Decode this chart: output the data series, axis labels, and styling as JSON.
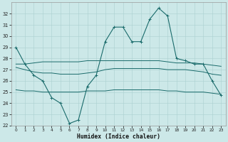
{
  "xlabel": "Humidex (Indice chaleur)",
  "bg_color": "#cce8e8",
  "grid_color": "#aad0d0",
  "line_color": "#1a6b6b",
  "x": [
    0,
    1,
    2,
    3,
    4,
    5,
    6,
    7,
    8,
    9,
    10,
    11,
    12,
    13,
    14,
    15,
    16,
    17,
    18,
    19,
    20,
    21,
    22,
    23
  ],
  "line_main": [
    29.0,
    27.5,
    26.5,
    26.0,
    24.5,
    24.0,
    22.2,
    22.5,
    25.5,
    26.5,
    29.5,
    30.8,
    30.8,
    29.5,
    29.5,
    31.5,
    32.5,
    31.8,
    28.0,
    27.8,
    27.5,
    27.5,
    26.0,
    24.7
  ],
  "line_upper": [
    27.5,
    27.5,
    27.6,
    27.7,
    27.7,
    27.7,
    27.7,
    27.7,
    27.8,
    27.8,
    27.8,
    27.8,
    27.8,
    27.8,
    27.8,
    27.8,
    27.8,
    27.7,
    27.6,
    27.6,
    27.6,
    27.5,
    27.4,
    27.3
  ],
  "line_mid": [
    27.2,
    27.0,
    26.8,
    26.7,
    26.7,
    26.6,
    26.6,
    26.6,
    26.7,
    26.8,
    27.0,
    27.1,
    27.1,
    27.1,
    27.1,
    27.1,
    27.1,
    27.0,
    27.0,
    27.0,
    26.9,
    26.8,
    26.6,
    26.5
  ],
  "line_lower": [
    25.2,
    25.1,
    25.1,
    25.0,
    25.0,
    25.0,
    25.0,
    25.0,
    25.1,
    25.1,
    25.1,
    25.2,
    25.2,
    25.2,
    25.2,
    25.2,
    25.2,
    25.1,
    25.1,
    25.0,
    25.0,
    25.0,
    24.9,
    24.8
  ],
  "ylim": [
    22,
    33
  ],
  "yticks": [
    22,
    23,
    24,
    25,
    26,
    27,
    28,
    29,
    30,
    31,
    32
  ],
  "xlim": [
    -0.5,
    23.5
  ],
  "xticks": [
    0,
    1,
    2,
    3,
    4,
    5,
    6,
    7,
    8,
    9,
    10,
    11,
    12,
    13,
    14,
    15,
    16,
    17,
    18,
    19,
    20,
    21,
    22,
    23
  ]
}
